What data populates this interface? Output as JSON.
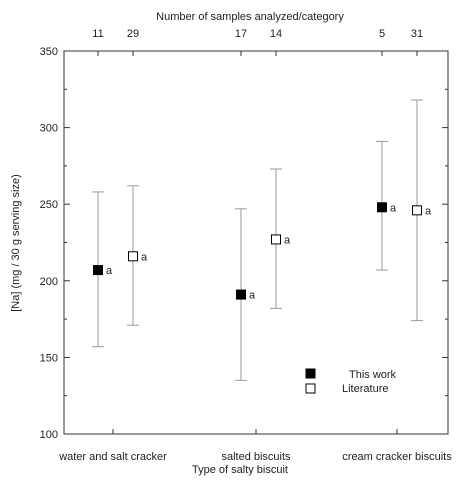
{
  "chart_data": {
    "type": "scatter",
    "title": "",
    "xlabel": "Type of salty biscuit",
    "ylabel": "[Na] (mg / 30 g serving size)",
    "top_axis_label": "Number of samples analyzed/category",
    "ylim": [
      100,
      350
    ],
    "yticks": [
      100,
      150,
      200,
      250,
      300,
      350
    ],
    "categories": [
      "water and salt cracker",
      "salted biscuits",
      "cream cracker biscuits"
    ],
    "series": [
      {
        "name": "This work",
        "marker": "filled-square",
        "values": [
          207,
          191,
          248
        ],
        "errors_low": [
          157,
          135,
          207
        ],
        "errors_high": [
          258,
          247,
          291
        ],
        "labels": [
          "a",
          "a",
          "a"
        ],
        "n_samples": [
          11,
          17,
          5
        ]
      },
      {
        "name": "Literature",
        "marker": "open-square",
        "values": [
          216,
          227,
          246
        ],
        "errors_low": [
          171,
          182,
          174
        ],
        "errors_high": [
          262,
          273,
          318
        ],
        "labels": [
          "a",
          "a",
          "a"
        ],
        "n_samples": [
          29,
          14,
          31
        ]
      }
    ],
    "grid": false,
    "legend_position": "bottom-right",
    "colors": {
      "axis": "#333333",
      "error_bar": "#999999",
      "marker": "#000000"
    }
  }
}
